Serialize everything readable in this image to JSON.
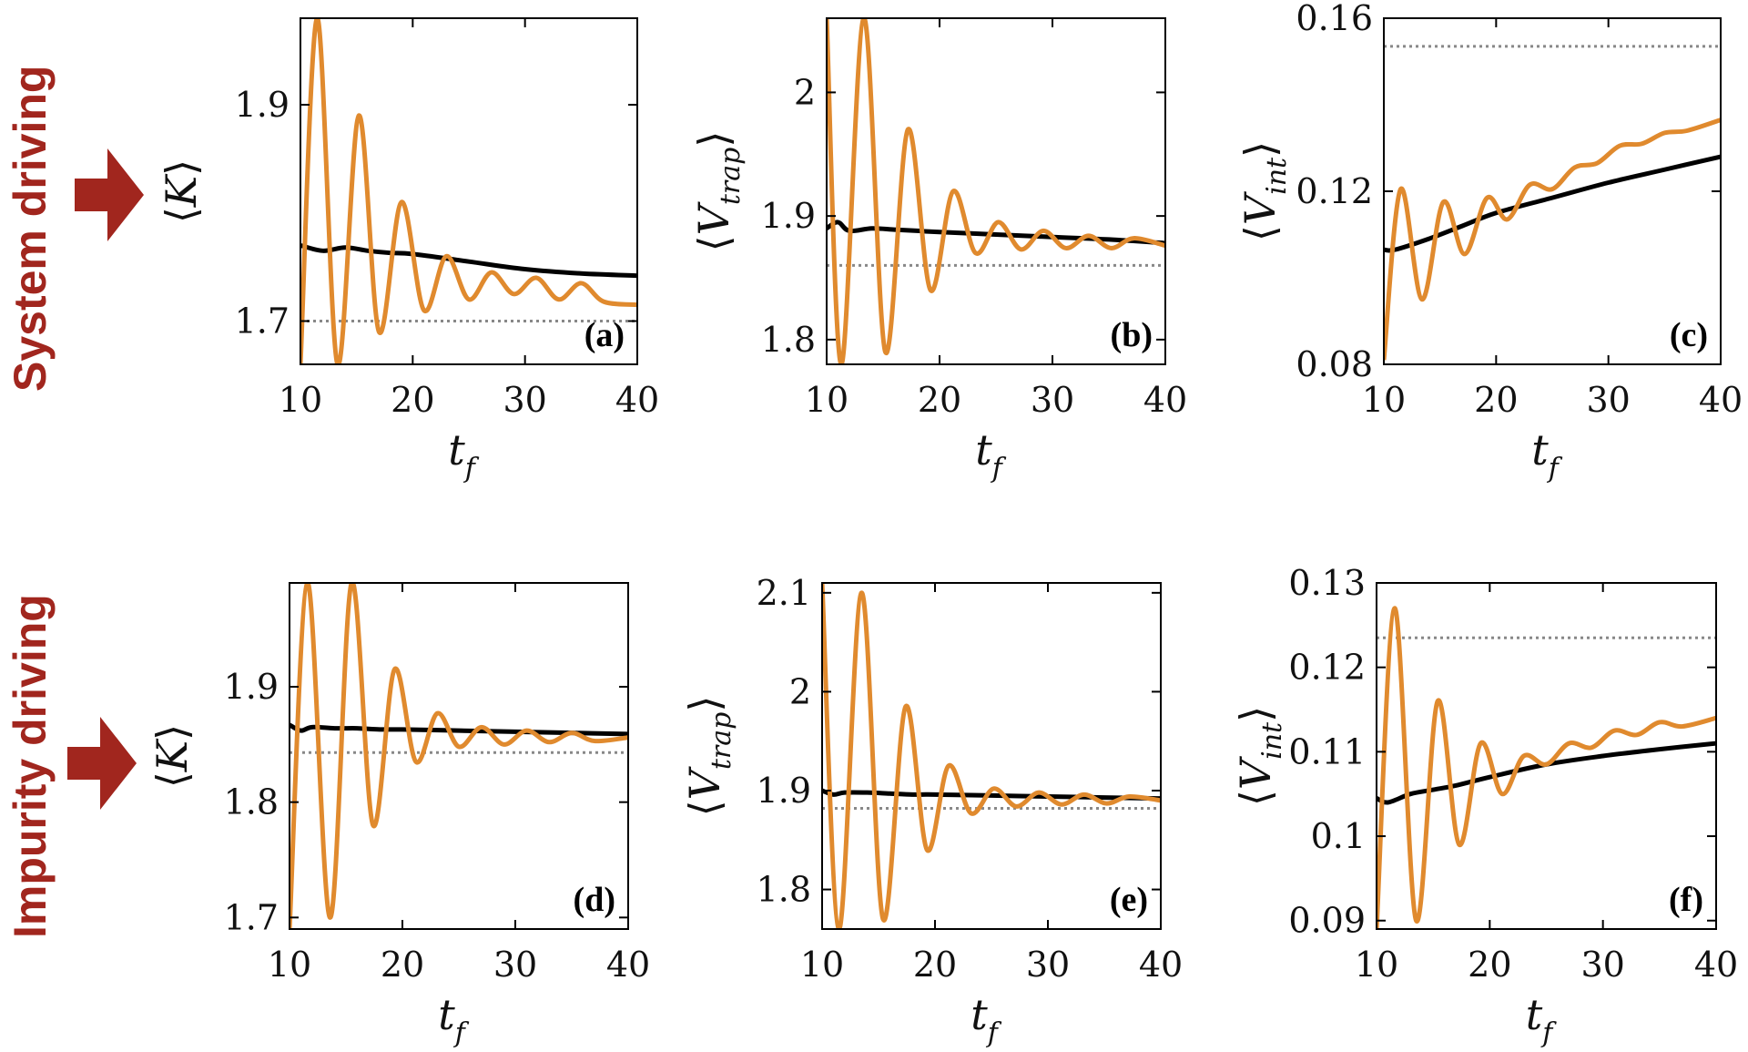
{
  "row_labels": [
    "System driving",
    "Impurity driving"
  ],
  "colors": {
    "orange": "#e08a2e",
    "black": "#000000",
    "dotted": "#888888",
    "arrow": "#a1261e"
  },
  "chart_data": [
    {
      "type": "line",
      "panel": "(a)",
      "xlabel": "t",
      "xsub": "f",
      "ylabel": "K",
      "ysub": "",
      "xlim": [
        10,
        40
      ],
      "ylim": [
        1.66,
        1.98
      ],
      "xticks": [
        10,
        20,
        30,
        40
      ],
      "yticks": [
        1.7,
        1.9
      ],
      "ytick_labels": [
        "1.7",
        "1.9"
      ],
      "reference_line": 1.7,
      "series": [
        {
          "name": "black",
          "x": [
            10,
            12,
            14,
            16,
            18,
            20,
            25,
            30,
            35,
            40
          ],
          "y": [
            1.77,
            1.765,
            1.768,
            1.765,
            1.763,
            1.762,
            1.755,
            1.748,
            1.744,
            1.742
          ]
        },
        {
          "name": "orange",
          "x": [
            10,
            11.5,
            13.3,
            15.2,
            17,
            19,
            21,
            23,
            25,
            27,
            29,
            31,
            33,
            35,
            37,
            40
          ],
          "y": [
            1.66,
            1.98,
            1.66,
            1.89,
            1.69,
            1.81,
            1.71,
            1.76,
            1.72,
            1.745,
            1.725,
            1.74,
            1.72,
            1.735,
            1.718,
            1.715
          ]
        }
      ]
    },
    {
      "type": "line",
      "panel": "(b)",
      "xlabel": "t",
      "xsub": "f",
      "ylabel": "V",
      "ysub": "trap",
      "xlim": [
        10,
        40
      ],
      "ylim": [
        1.78,
        2.06
      ],
      "xticks": [
        10,
        20,
        30,
        40
      ],
      "yticks": [
        1.8,
        1.9,
        2
      ],
      "ytick_labels": [
        "1.8",
        "1.9",
        "2"
      ],
      "reference_line": 1.86,
      "series": [
        {
          "name": "black",
          "x": [
            10,
            11,
            12,
            14,
            16,
            18,
            20,
            25,
            30,
            35,
            40
          ],
          "y": [
            1.89,
            1.895,
            1.888,
            1.89,
            1.889,
            1.888,
            1.887,
            1.885,
            1.883,
            1.881,
            1.878
          ]
        },
        {
          "name": "orange",
          "x": [
            10,
            11.3,
            13.3,
            15.2,
            17.2,
            19.2,
            21.2,
            23.2,
            25.2,
            27.2,
            29.2,
            31.2,
            33.2,
            35.2,
            37.2,
            40
          ],
          "y": [
            2.06,
            1.78,
            2.06,
            1.79,
            1.97,
            1.84,
            1.92,
            1.87,
            1.895,
            1.873,
            1.888,
            1.874,
            1.884,
            1.874,
            1.882,
            1.876
          ]
        }
      ]
    },
    {
      "type": "line",
      "panel": "(c)",
      "xlabel": "t",
      "xsub": "f",
      "ylabel": "V",
      "ysub": "int",
      "xlim": [
        10,
        40
      ],
      "ylim": [
        0.08,
        0.16
      ],
      "xticks": [
        10,
        20,
        30,
        40
      ],
      "yticks": [
        0.08,
        0.12,
        0.16
      ],
      "ytick_labels": [
        "0.08",
        "0.12",
        "0.16"
      ],
      "reference_line": 0.1535,
      "series": [
        {
          "name": "black",
          "x": [
            10,
            11,
            14,
            17,
            20,
            25,
            30,
            35,
            40
          ],
          "y": [
            0.1065,
            0.1065,
            0.109,
            0.112,
            0.115,
            0.1185,
            0.122,
            0.125,
            0.128
          ]
        },
        {
          "name": "orange",
          "x": [
            10,
            11.5,
            13.4,
            15.3,
            17.2,
            19.2,
            21,
            23,
            25,
            27,
            29,
            31,
            33,
            35,
            37,
            40
          ],
          "y": [
            0.081,
            0.1205,
            0.095,
            0.1175,
            0.1055,
            0.1185,
            0.1135,
            0.1215,
            0.1205,
            0.1255,
            0.1265,
            0.1305,
            0.131,
            0.1335,
            0.134,
            0.1365
          ]
        }
      ]
    },
    {
      "type": "line",
      "panel": "(d)",
      "xlabel": "t",
      "xsub": "f",
      "ylabel": "K",
      "ysub": "",
      "xlim": [
        10,
        40
      ],
      "ylim": [
        1.69,
        1.99
      ],
      "xticks": [
        10,
        20,
        30,
        40
      ],
      "yticks": [
        1.7,
        1.8,
        1.9
      ],
      "ytick_labels": [
        "1.7",
        "1.8",
        "1.9"
      ],
      "reference_line": 1.843,
      "series": [
        {
          "name": "black",
          "x": [
            10,
            11,
            12,
            14,
            16,
            18,
            20,
            25,
            30,
            35,
            40
          ],
          "y": [
            1.867,
            1.862,
            1.865,
            1.864,
            1.864,
            1.863,
            1.863,
            1.862,
            1.861,
            1.86,
            1.859
          ]
        },
        {
          "name": "orange",
          "x": [
            10,
            11.6,
            13.6,
            15.5,
            17.4,
            19.3,
            21.2,
            23.1,
            25,
            27,
            29,
            31,
            33,
            35,
            37,
            40
          ],
          "y": [
            1.69,
            1.99,
            1.7,
            1.99,
            1.78,
            1.915,
            1.835,
            1.877,
            1.848,
            1.865,
            1.85,
            1.862,
            1.852,
            1.86,
            1.853,
            1.856
          ]
        }
      ]
    },
    {
      "type": "line",
      "panel": "(e)",
      "xlabel": "t",
      "xsub": "f",
      "ylabel": "V",
      "ysub": "trap",
      "xlim": [
        10,
        40
      ],
      "ylim": [
        1.76,
        2.11
      ],
      "xticks": [
        10,
        20,
        30,
        40
      ],
      "yticks": [
        1.8,
        1.9,
        2,
        2.1
      ],
      "ytick_labels": [
        "1.8",
        "1.9",
        "2",
        "2.1"
      ],
      "reference_line": 1.882,
      "series": [
        {
          "name": "black",
          "x": [
            10,
            11,
            12,
            14,
            16,
            18,
            20,
            25,
            30,
            35,
            40
          ],
          "y": [
            1.9,
            1.896,
            1.898,
            1.898,
            1.897,
            1.896,
            1.896,
            1.895,
            1.894,
            1.893,
            1.892
          ]
        },
        {
          "name": "orange",
          "x": [
            10,
            11.5,
            13.5,
            15.4,
            17.4,
            19.3,
            21.2,
            23.2,
            25.2,
            27.2,
            29.2,
            31.2,
            33.2,
            35.2,
            37.2,
            40
          ],
          "y": [
            2.11,
            1.76,
            2.1,
            1.77,
            1.985,
            1.84,
            1.925,
            1.877,
            1.902,
            1.884,
            1.898,
            1.886,
            1.896,
            1.887,
            1.894,
            1.89
          ]
        }
      ]
    },
    {
      "type": "line",
      "panel": "(f)",
      "xlabel": "t",
      "xsub": "f",
      "ylabel": "V",
      "ysub": "int",
      "xlim": [
        10,
        40
      ],
      "ylim": [
        0.089,
        0.13
      ],
      "xticks": [
        10,
        20,
        30,
        40
      ],
      "yticks": [
        0.09,
        0.1,
        0.11,
        0.12,
        0.13
      ],
      "ytick_labels": [
        "0.09",
        "0.1",
        "0.11",
        "0.12",
        "0.13"
      ],
      "reference_line": 0.1235,
      "series": [
        {
          "name": "black",
          "x": [
            10,
            11,
            13,
            15,
            17,
            20,
            25,
            30,
            35,
            40
          ],
          "y": [
            0.1045,
            0.104,
            0.105,
            0.1055,
            0.106,
            0.107,
            0.1085,
            0.1095,
            0.1103,
            0.111
          ]
        },
        {
          "name": "orange",
          "x": [
            10,
            11.6,
            13.5,
            15.4,
            17.3,
            19.2,
            21.1,
            23,
            25,
            27,
            29,
            31,
            33,
            35,
            37,
            40
          ],
          "y": [
            0.089,
            0.127,
            0.09,
            0.116,
            0.099,
            0.111,
            0.105,
            0.1095,
            0.1085,
            0.111,
            0.1105,
            0.1125,
            0.112,
            0.1135,
            0.113,
            0.114
          ]
        }
      ]
    }
  ]
}
